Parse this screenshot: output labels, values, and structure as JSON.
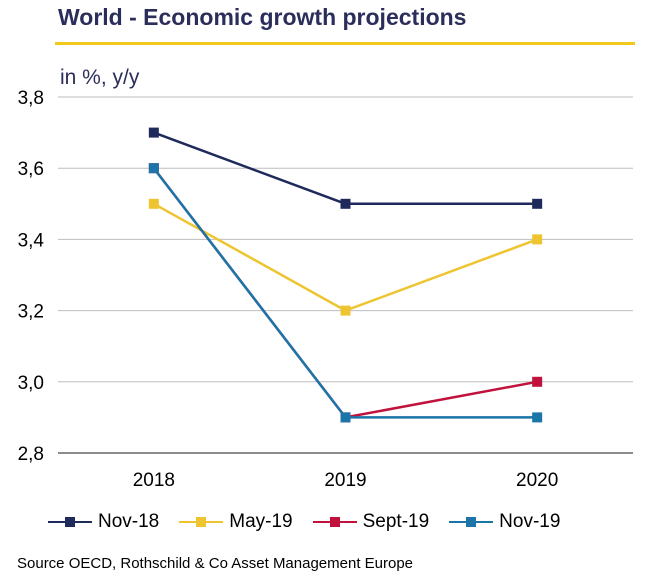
{
  "header": {
    "title": "World - Economic growth projections",
    "units": "in %, y/y"
  },
  "source": "Source OECD, Rothschild & Co Asset Management Europe",
  "chart_data": {
    "type": "line",
    "title": "World - Economic growth projections",
    "subtitle": "in %, y/y",
    "xlabel": "",
    "ylabel": "",
    "categories": [
      "2018",
      "2019",
      "2020"
    ],
    "ylim": [
      2.8,
      3.8
    ],
    "yticks": [
      "2,8",
      "3,0",
      "3,2",
      "3,4",
      "3,6",
      "3,8"
    ],
    "ytick_values": [
      2.8,
      3.0,
      3.2,
      3.4,
      3.6,
      3.8
    ],
    "grid": true,
    "legend_position": "bottom",
    "series": [
      {
        "name": "Nov-18",
        "color": "#1f2a5c",
        "values": [
          3.7,
          3.5,
          3.5
        ]
      },
      {
        "name": "May-19",
        "color": "#eec531",
        "values": [
          3.5,
          3.2,
          3.4
        ]
      },
      {
        "name": "Sept-19",
        "color": "#c0123c",
        "values": [
          3.6,
          2.9,
          3.0
        ]
      },
      {
        "name": "Nov-19",
        "color": "#1b75a8",
        "values": [
          3.6,
          2.9,
          2.9
        ]
      }
    ]
  }
}
